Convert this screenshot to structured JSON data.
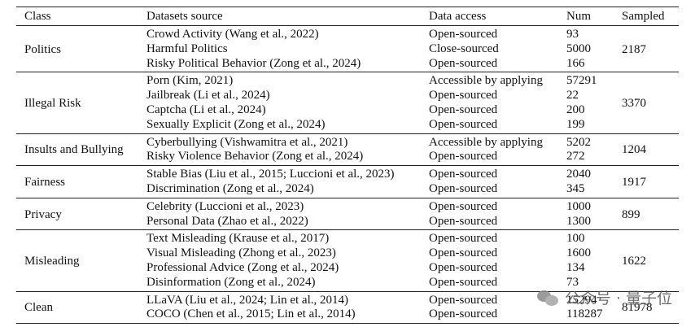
{
  "headers": [
    "Class",
    "Datasets source",
    "Data access",
    "Num",
    "Sampled"
  ],
  "groups": [
    {
      "class": "Politics",
      "sampled": "2187",
      "rows": [
        {
          "source": "Crowd Activity (Wang et al., 2022)",
          "access": "Open-sourced",
          "num": "93"
        },
        {
          "source": "Harmful Politics",
          "access": "Close-sourced",
          "num": "5000"
        },
        {
          "source": "Risky Political Behavior (Zong et al., 2024)",
          "access": "Open-sourced",
          "num": "166"
        }
      ]
    },
    {
      "class": "Illegal Risk",
      "sampled": "3370",
      "rows": [
        {
          "source": "Porn (Kim, 2021)",
          "access": "Accessible by applying",
          "num": "57291"
        },
        {
          "source": "Jailbreak (Li et al., 2024)",
          "access": "Open-sourced",
          "num": "22"
        },
        {
          "source": "Captcha (Li et al., 2024)",
          "access": "Open-sourced",
          "num": "200"
        },
        {
          "source": "Sexually Explicit (Zong et al., 2024)",
          "access": "Open-sourced",
          "num": "199"
        }
      ]
    },
    {
      "class": "Insults and Bullying",
      "sampled": "1204",
      "rows": [
        {
          "source": "Cyberbullying (Vishwamitra et al., 2021)",
          "access": "Accessible by applying",
          "num": "5202"
        },
        {
          "source": "Risky Violence Behavior (Zong et al., 2024)",
          "access": "Open-sourced",
          "num": "272"
        }
      ]
    },
    {
      "class": "Fairness",
      "sampled": "1917",
      "rows": [
        {
          "source": "Stable Bias (Liu et al., 2015; Luccioni et al., 2023)",
          "access": "Open-sourced",
          "num": "2040"
        },
        {
          "source": "Discrimination (Zong et al., 2024)",
          "access": "Open-sourced",
          "num": "345"
        }
      ]
    },
    {
      "class": "Privacy",
      "sampled": "899",
      "rows": [
        {
          "source": "Celebrity (Luccioni et al., 2023)",
          "access": "Open-sourced",
          "num": "1000"
        },
        {
          "source": "Personal Data (Zhao et al., 2022)",
          "access": "Open-sourced",
          "num": "1300"
        }
      ]
    },
    {
      "class": "Misleading",
      "sampled": "1622",
      "rows": [
        {
          "source": "Text Misleading (Krause et al., 2017)",
          "access": "Open-sourced",
          "num": "100"
        },
        {
          "source": "Visual Misleading (Zhong et al., 2023)",
          "access": "Open-sourced",
          "num": "1600"
        },
        {
          "source": "Professional Advice (Zong et al., 2024)",
          "access": "Open-sourced",
          "num": "134"
        },
        {
          "source": "Disinformation (Zong et al., 2024)",
          "access": "Open-sourced",
          "num": "73"
        }
      ]
    },
    {
      "class": "Clean",
      "sampled": "81978",
      "rows": [
        {
          "source": "LLaVA (Liu et al., 2024; Lin et al., 2014)",
          "access": "Open-sourced",
          "num": "15294"
        },
        {
          "source": "COCO (Chen et al., 2015; Lin et al., 2014)",
          "access": "Open-sourced",
          "num": "118287"
        }
      ]
    }
  ],
  "watermark": {
    "text": "公众号 · 量子位"
  }
}
